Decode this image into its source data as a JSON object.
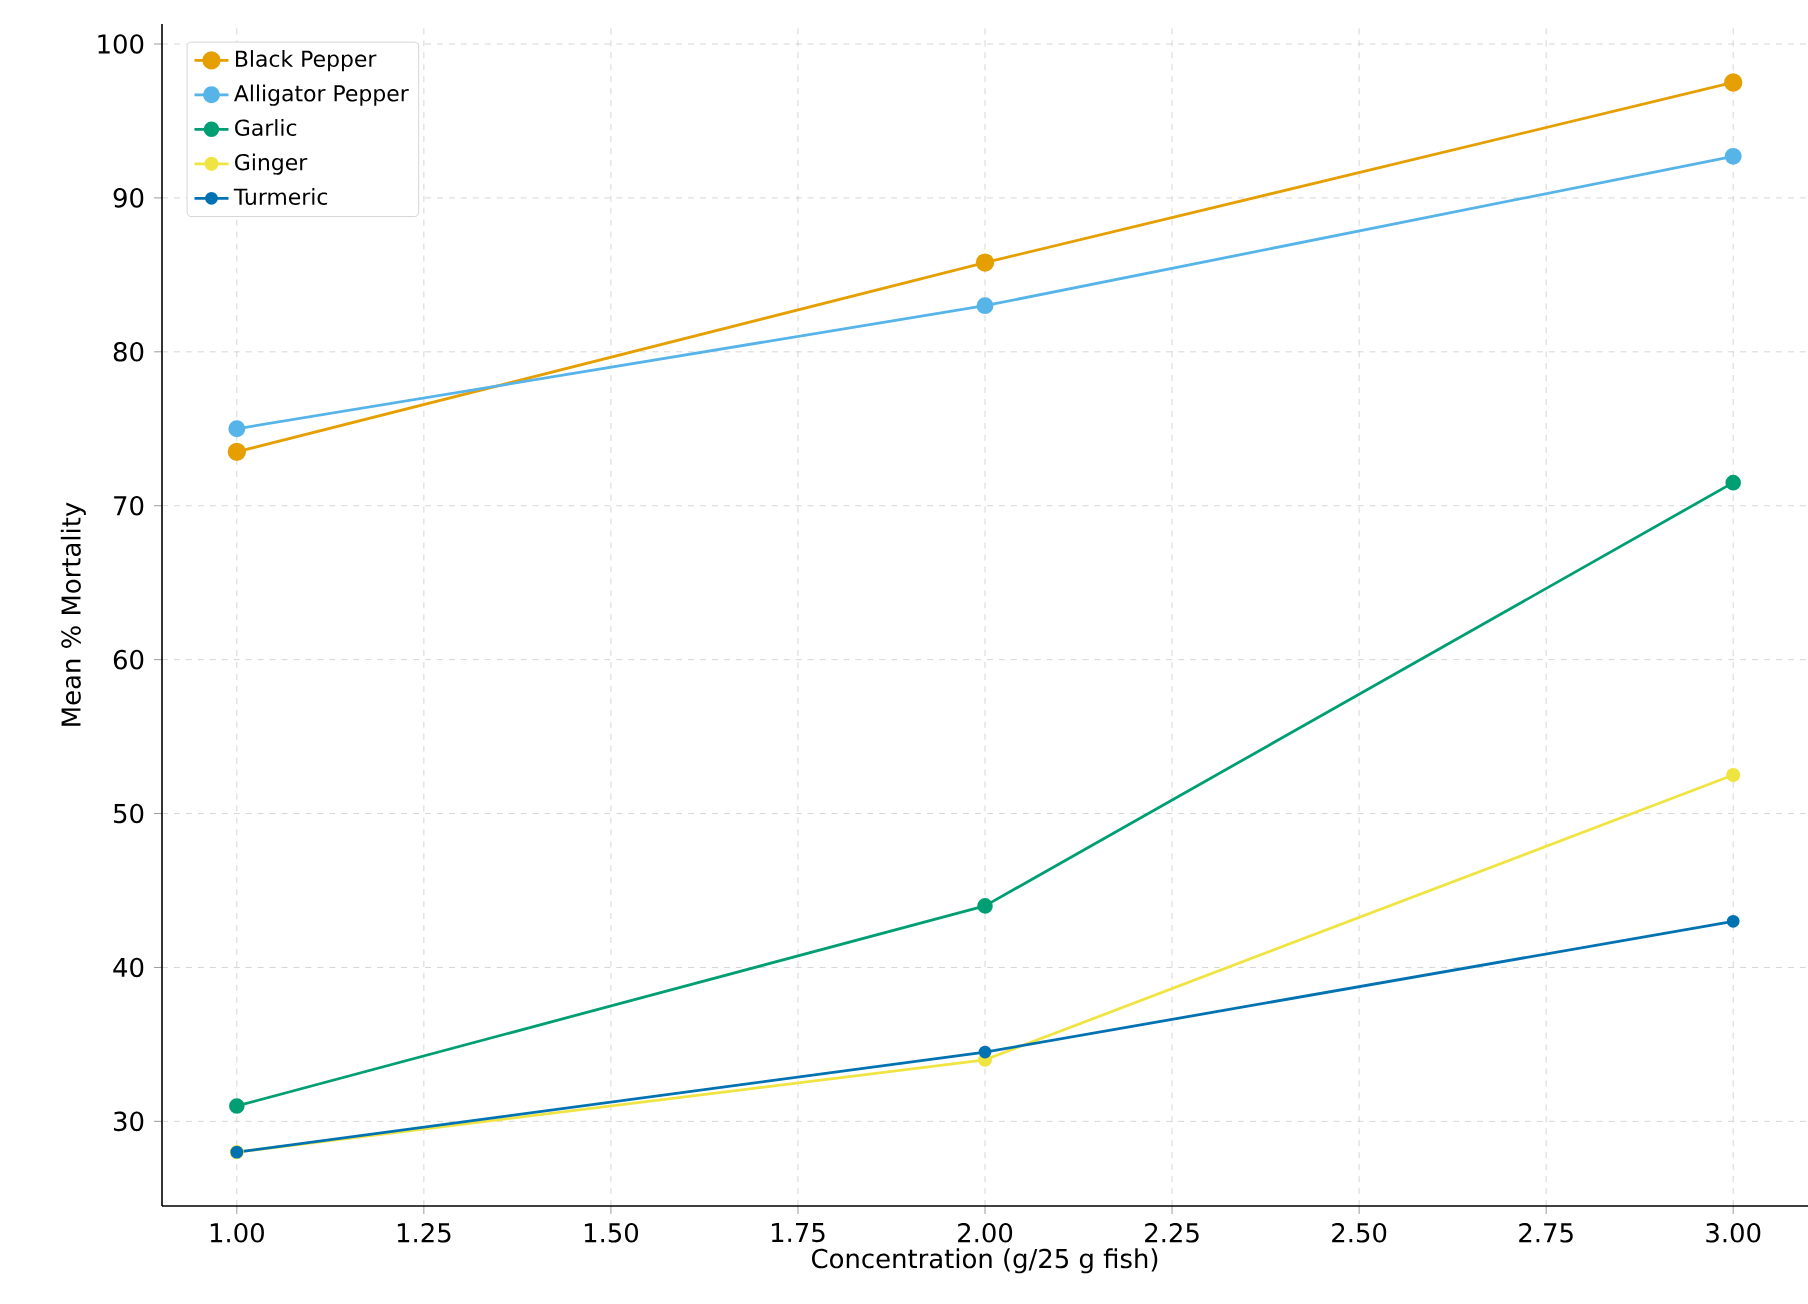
{
  "chart_data": {
    "type": "line",
    "xlabel": "Concentration (g/25 g fish)",
    "ylabel": "Mean % Mortality",
    "x": [
      1.0,
      2.0,
      3.0
    ],
    "series": [
      {
        "name": "Black Pepper",
        "color": "#e69f00",
        "values": [
          73.5,
          85.8,
          97.5
        ]
      },
      {
        "name": "Alligator Pepper",
        "color": "#56b4e9",
        "values": [
          75,
          83,
          92.7
        ]
      },
      {
        "name": "Garlic",
        "color": "#009e73",
        "values": [
          31,
          44,
          71.5
        ]
      },
      {
        "name": "Ginger",
        "color": "#f0e442",
        "values": [
          28,
          34,
          52.5
        ]
      },
      {
        "name": "Turmeric",
        "color": "#0072b2",
        "values": [
          28,
          34.5,
          43
        ]
      }
    ],
    "xlim": [
      0.9,
      3.1
    ],
    "ylim": [
      24.5,
      101.3
    ],
    "xticks": [
      {
        "value": 1.0,
        "label": "1.00"
      },
      {
        "value": 1.25,
        "label": "1.25"
      },
      {
        "value": 1.5,
        "label": "1.50"
      },
      {
        "value": 1.75,
        "label": "1.75"
      },
      {
        "value": 2.0,
        "label": "2.00"
      },
      {
        "value": 2.25,
        "label": "2.25"
      },
      {
        "value": 2.5,
        "label": "2.50"
      },
      {
        "value": 2.75,
        "label": "2.75"
      },
      {
        "value": 3.0,
        "label": "3.00"
      }
    ],
    "yticks": [
      30,
      40,
      50,
      60,
      70,
      80,
      90,
      100
    ],
    "grid": true,
    "legend": "top left",
    "marker": "circle",
    "line_style": "solid"
  }
}
